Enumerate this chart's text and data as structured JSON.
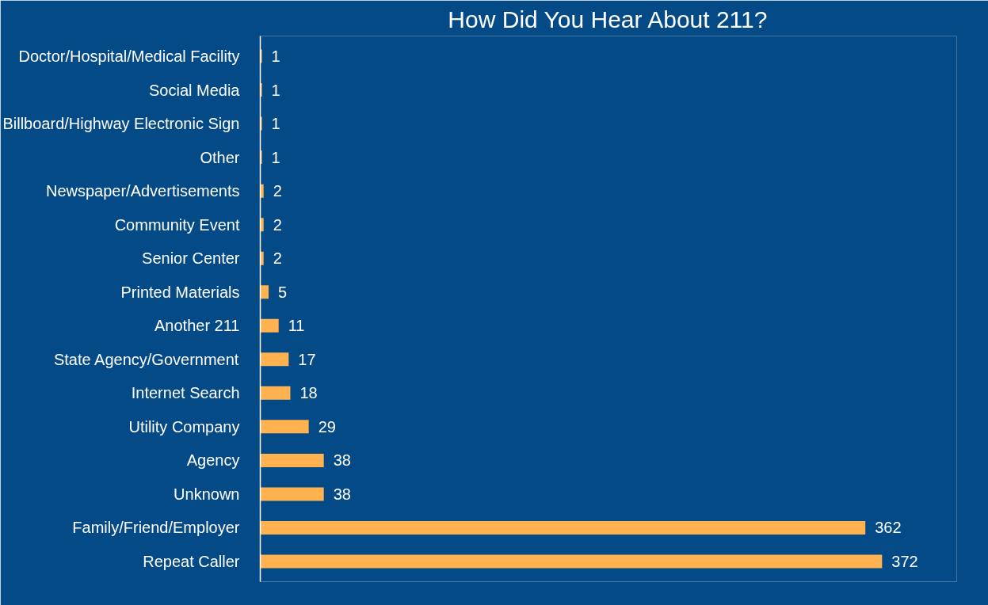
{
  "chart_data": {
    "type": "bar",
    "orientation": "horizontal",
    "title": "How Did You Hear About 211?",
    "categories": [
      "Doctor/Hospital/Medical Facility",
      "Social Media",
      "Billboard/Highway Electronic Sign",
      "Other",
      "Newspaper/Advertisements",
      "Community Event",
      "Senior Center",
      "Printed Materials",
      "Another 211",
      "State Agency/Government",
      "Internet Search",
      "Utility Company",
      "Agency",
      "Unknown",
      "Family/Friend/Employer",
      "Repeat Caller"
    ],
    "values": [
      1,
      1,
      1,
      1,
      2,
      2,
      2,
      5,
      11,
      17,
      18,
      29,
      38,
      38,
      362,
      372
    ],
    "color": "#ffb24f",
    "data_labels": true
  }
}
